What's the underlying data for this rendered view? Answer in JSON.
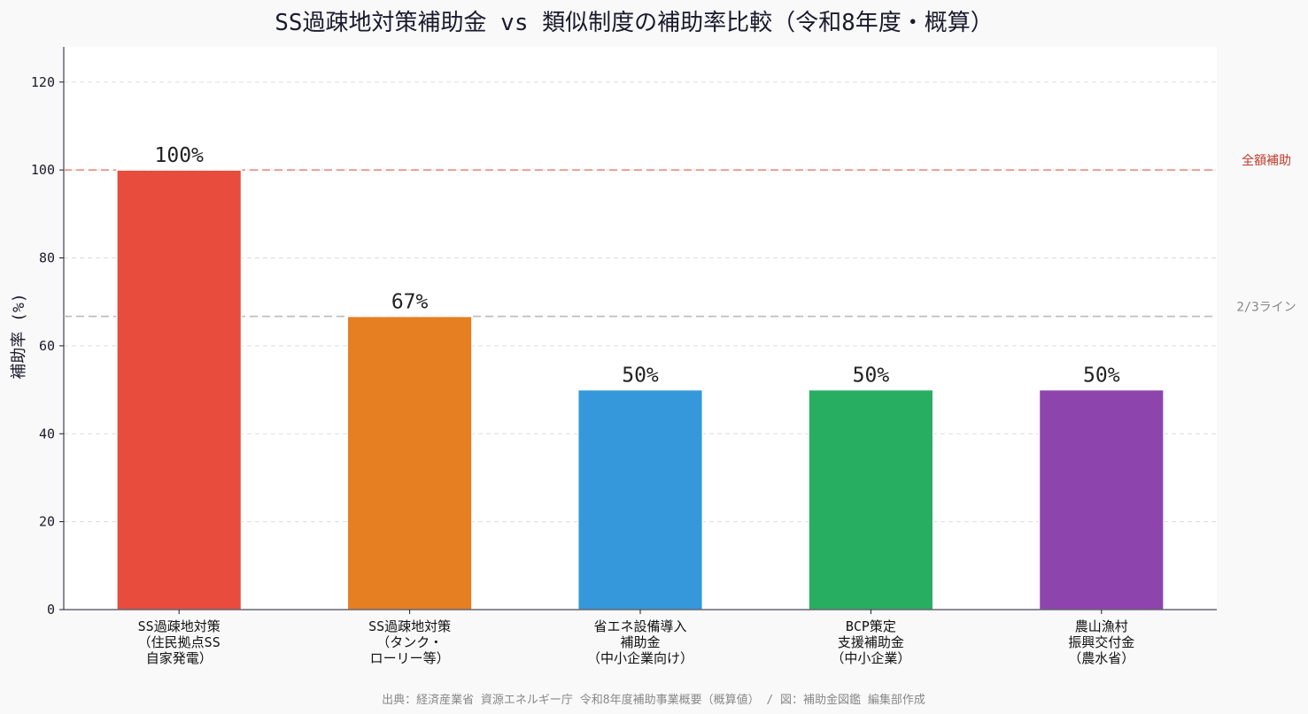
{
  "chart_data": {
    "type": "bar",
    "title": "SS過疎地対策補助金 vs 類似制度の補助率比較（令和8年度・概算）",
    "ylabel": "補助率 (%)",
    "xlabel": "",
    "ylim": [
      0,
      128
    ],
    "yticks": [
      0,
      20,
      40,
      60,
      80,
      100,
      120
    ],
    "grid": true,
    "categories": [
      [
        "SS過疎地対策",
        "（住民拠点SS",
        "自家発電）"
      ],
      [
        "SS過疎地対策",
        "（タンク・",
        "ローリー等）"
      ],
      [
        "省エネ設備導入",
        "補助金",
        "（中小企業向け）"
      ],
      [
        "BCP策定",
        "支援補助金",
        "（中小企業）"
      ],
      [
        "農山漁村",
        "振興交付金",
        "（農水省）"
      ]
    ],
    "values": [
      100,
      66.7,
      50,
      50,
      50
    ],
    "value_labels": [
      "100%",
      "67%",
      "50%",
      "50%",
      "50%"
    ],
    "colors": [
      "#e74c3c",
      "#e67e22",
      "#3498db",
      "#27ae60",
      "#8e44ad"
    ],
    "reference_lines": [
      {
        "value": 100,
        "label": "全額補助",
        "color": "#e8837a",
        "label_color": "#c0392b"
      },
      {
        "value": 66.7,
        "label": "2/3ライン",
        "color": "#bbbbbb",
        "label_color": "#888888"
      }
    ],
    "source": "出典：経済産業省 資源エネルギー庁 令和8年度補助事業概要（概算値） / 図：補助金図鑑 編集部作成"
  }
}
